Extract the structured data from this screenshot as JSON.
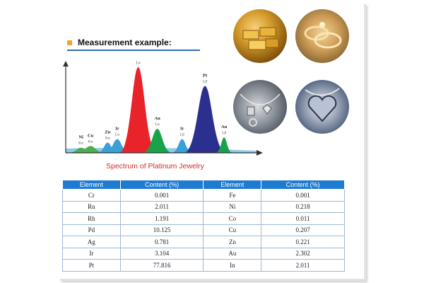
{
  "header": {
    "title": "Measurement example:"
  },
  "caption": "Spectrum of  Platinum Jewelry",
  "colors": {
    "accent": "#2d6db5",
    "table_header": "#1e7bd0",
    "caption": "#d42a2a",
    "bullet": "#f0a43a"
  },
  "chart_data": {
    "type": "area",
    "title": "Spectrum of  Platinum Jewelry",
    "xlabel": "",
    "ylabel": "",
    "grid": false,
    "peaks": [
      {
        "element": "Ni",
        "line": "Kα",
        "relative_height": 0.06,
        "color": "#4cae4c"
      },
      {
        "element": "Cu",
        "line": "Kα",
        "relative_height": 0.08,
        "color": "#4cae4c"
      },
      {
        "element": "Zn",
        "line": "Kα",
        "relative_height": 0.12,
        "color": "#3aa0d8"
      },
      {
        "element": "Ir",
        "line": "Lα",
        "relative_height": 0.16,
        "color": "#3aa0d8"
      },
      {
        "element": "Pt",
        "line": "Lα",
        "relative_height": 1.0,
        "color": "#e8242a"
      },
      {
        "element": "Au",
        "line": "Lα",
        "relative_height": 0.28,
        "color": "#1aa24a"
      },
      {
        "element": "Ir",
        "line": "Lβ",
        "relative_height": 0.16,
        "color": "#3aa0d8"
      },
      {
        "element": "Pt",
        "line": "Lβ",
        "relative_height": 0.78,
        "color": "#2b2f8f"
      },
      {
        "element": "Au",
        "line": "Lβ",
        "relative_height": 0.18,
        "color": "#1aa24a"
      }
    ]
  },
  "table": {
    "headers": [
      "Element",
      "Content (%)",
      "Element",
      "Content (%)"
    ],
    "rows": [
      [
        "Cr",
        "0.001",
        "Fe",
        "0.001"
      ],
      [
        "Ru",
        "2.011",
        "Ni",
        "0.218"
      ],
      [
        "Rh",
        "1.191",
        "Co",
        "0.011"
      ],
      [
        "Pd",
        "10.125",
        "Cu",
        "0.207"
      ],
      [
        "Ag",
        "0.781",
        "Zn",
        "0.221"
      ],
      [
        "Ir",
        "3.104",
        "Au",
        "2.302"
      ],
      [
        "Pt",
        "77.816",
        "In",
        "2.011"
      ]
    ]
  },
  "photos": [
    {
      "icon": "gold-bars-icon"
    },
    {
      "icon": "gold-rings-icon"
    },
    {
      "icon": "silver-chain-icon"
    },
    {
      "icon": "heart-pendant-icon"
    }
  ]
}
